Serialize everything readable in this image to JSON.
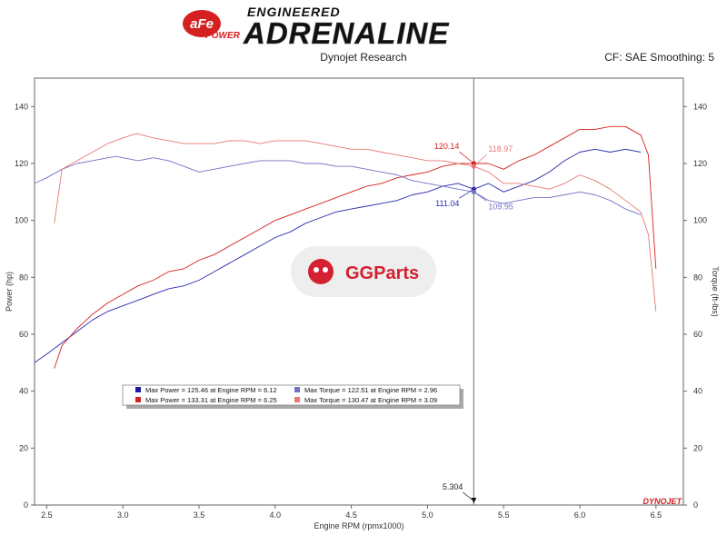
{
  "header": {
    "brand_badge": "aFe",
    "brand_badge_sub": "POWER",
    "brand_small": "ENGINEERED",
    "brand_large": "ADRENALINE",
    "research": "Dynojet Research",
    "settings": "CF: SAE Smoothing: 5"
  },
  "watermark": {
    "text": "GGParts"
  },
  "dynojet_mark": "DYNOJET",
  "chart_data": {
    "type": "line",
    "xlabel": "Engine RPM (rpmx1000)",
    "ylabel": "Power (hp)",
    "y2label": "Torque (ft-lbs)",
    "xlim": [
      2.42,
      6.68
    ],
    "ylim": [
      0,
      150
    ],
    "y2lim": [
      0,
      150
    ],
    "xticks": [
      2.5,
      3.0,
      3.5,
      4.0,
      4.5,
      5.0,
      5.5,
      6.0,
      6.5
    ],
    "yticks": [
      0,
      20,
      40,
      60,
      80,
      100,
      120,
      140
    ],
    "grid": false,
    "cursor": {
      "x": 5.304,
      "label": "5.304"
    },
    "cursor_values": [
      {
        "text": "120.14",
        "series": 1,
        "side": "left"
      },
      {
        "text": "118.97",
        "series": 3,
        "side": "right"
      },
      {
        "text": "111.04",
        "series": 0,
        "side": "left"
      },
      {
        "text": "109.95",
        "series": 2,
        "side": "right"
      }
    ],
    "legend": [
      {
        "text": "Max Power = 125.46 at Engine RPM = 6.12",
        "color": "#1a1aa6"
      },
      {
        "text": "Max Torque = 122.51 at Engine RPM = 2.96",
        "color": "#7272c8"
      },
      {
        "text": "Max Power = 133.31 at Engine RPM = 6.25",
        "color": "#d42020"
      },
      {
        "text": "Max Torque = 130.47 at Engine RPM = 3.09",
        "color": "#e87a72"
      }
    ],
    "series": [
      {
        "color": "#2a2ab0",
        "width": 0.9,
        "x": [
          2.42,
          2.5,
          2.6,
          2.7,
          2.8,
          2.9,
          3.0,
          3.1,
          3.2,
          3.3,
          3.4,
          3.5,
          3.6,
          3.7,
          3.8,
          3.9,
          4.0,
          4.1,
          4.2,
          4.3,
          4.4,
          4.5,
          4.6,
          4.7,
          4.8,
          4.9,
          5.0,
          5.1,
          5.2,
          5.304,
          5.4,
          5.5,
          5.6,
          5.7,
          5.8,
          5.9,
          6.0,
          6.1,
          6.2,
          6.3,
          6.4
        ],
        "values": [
          50,
          53,
          57,
          61,
          65,
          68,
          70,
          72,
          74,
          76,
          77,
          79,
          82,
          85,
          88,
          91,
          94,
          96,
          99,
          101,
          103,
          104,
          105,
          106,
          107,
          109,
          110,
          112,
          113,
          111,
          113,
          110,
          112,
          114,
          117,
          121,
          124,
          125,
          124,
          125,
          124
        ]
      },
      {
        "color": "#d42020",
        "width": 0.9,
        "x": [
          2.55,
          2.6,
          2.7,
          2.8,
          2.9,
          3.0,
          3.1,
          3.2,
          3.3,
          3.4,
          3.5,
          3.6,
          3.7,
          3.8,
          3.9,
          4.0,
          4.1,
          4.2,
          4.3,
          4.4,
          4.5,
          4.6,
          4.7,
          4.8,
          4.9,
          5.0,
          5.1,
          5.2,
          5.304,
          5.4,
          5.5,
          5.6,
          5.7,
          5.8,
          5.9,
          6.0,
          6.1,
          6.2,
          6.3,
          6.4,
          6.45,
          6.5
        ],
        "values": [
          48,
          56,
          62,
          67,
          71,
          74,
          77,
          79,
          82,
          83,
          86,
          88,
          91,
          94,
          97,
          100,
          102,
          104,
          106,
          108,
          110,
          112,
          113,
          115,
          116,
          117,
          119,
          120,
          120,
          120,
          118,
          121,
          123,
          126,
          129,
          132,
          132,
          133,
          133,
          130,
          123,
          83
        ]
      },
      {
        "color": "#7272c8",
        "width": 0.9,
        "x": [
          2.42,
          2.5,
          2.6,
          2.7,
          2.8,
          2.9,
          2.96,
          3.0,
          3.1,
          3.2,
          3.3,
          3.4,
          3.5,
          3.6,
          3.7,
          3.8,
          3.9,
          4.0,
          4.1,
          4.2,
          4.3,
          4.4,
          4.5,
          4.6,
          4.7,
          4.8,
          4.9,
          5.0,
          5.1,
          5.2,
          5.304,
          5.4,
          5.5,
          5.6,
          5.7,
          5.8,
          5.9,
          6.0,
          6.1,
          6.2,
          6.3,
          6.4
        ],
        "values": [
          113,
          115,
          118,
          120,
          121,
          122,
          122.5,
          122,
          121,
          122,
          121,
          119,
          117,
          118,
          119,
          120,
          121,
          121,
          121,
          120,
          120,
          119,
          119,
          118,
          117,
          116,
          114,
          113,
          112,
          111,
          110,
          107,
          106,
          107,
          108,
          108,
          109,
          110,
          109,
          107,
          104,
          102
        ]
      },
      {
        "color": "#e87a72",
        "width": 0.9,
        "x": [
          2.55,
          2.6,
          2.7,
          2.8,
          2.9,
          3.0,
          3.09,
          3.2,
          3.3,
          3.4,
          3.5,
          3.6,
          3.7,
          3.8,
          3.9,
          4.0,
          4.1,
          4.2,
          4.3,
          4.4,
          4.5,
          4.6,
          4.7,
          4.8,
          4.9,
          5.0,
          5.1,
          5.2,
          5.304,
          5.4,
          5.5,
          5.6,
          5.7,
          5.8,
          5.9,
          6.0,
          6.1,
          6.2,
          6.3,
          6.4,
          6.45,
          6.5
        ],
        "values": [
          99,
          118,
          121,
          124,
          127,
          129,
          130.5,
          129,
          128,
          127,
          127,
          127,
          128,
          128,
          127,
          128,
          128,
          128,
          127,
          126,
          125,
          125,
          124,
          123,
          122,
          121,
          121,
          120,
          119,
          117,
          113,
          113,
          112,
          111,
          113,
          116,
          114,
          111,
          107,
          103,
          95,
          68
        ]
      }
    ]
  }
}
